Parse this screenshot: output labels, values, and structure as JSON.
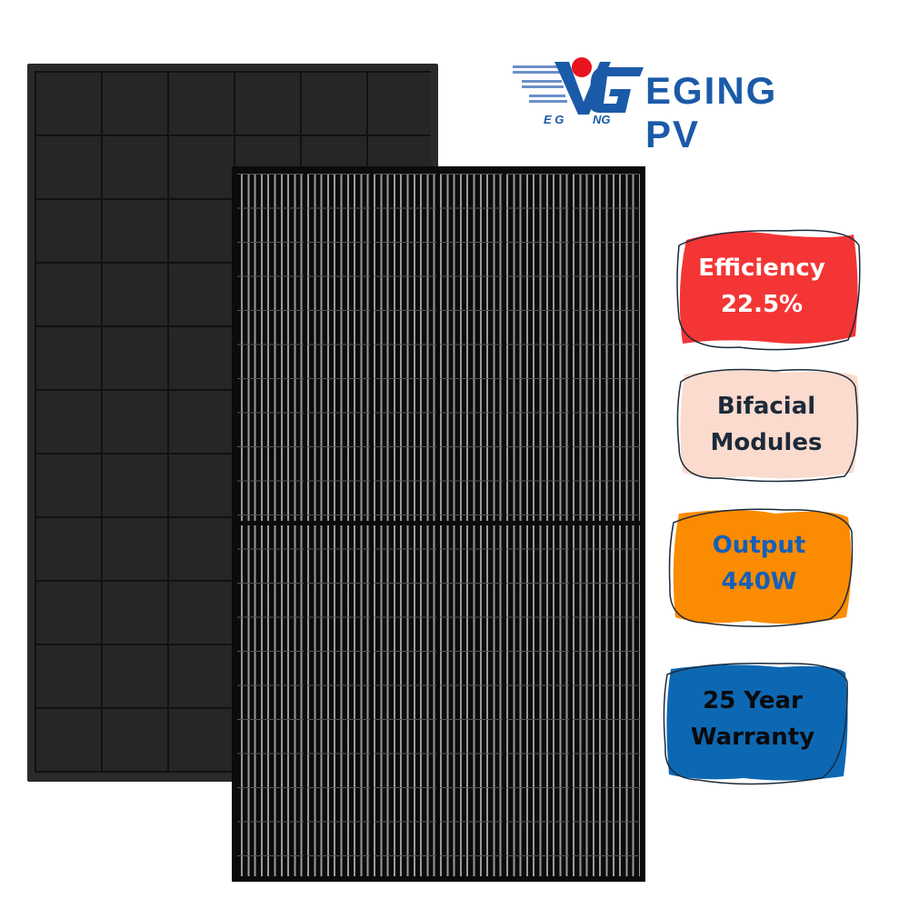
{
  "logo": {
    "brand": "EGING PV",
    "mark_letters": "EGING",
    "colors": {
      "blue": "#1a5aa8",
      "red": "#e8141e"
    }
  },
  "product": {
    "image": "solar-panels-front-and-back"
  },
  "badges": [
    {
      "line1": "Efficiency",
      "line2": "22.5%",
      "fill": "#f43535",
      "text_color": "#ffffff"
    },
    {
      "line1": "Bifacial",
      "line2": "Modules",
      "fill": "#fadbcd",
      "text_color": "#1c2a3a"
    },
    {
      "line1": "Output",
      "line2": "440W",
      "fill": "#fb8b00",
      "text_color": "#1560b8"
    },
    {
      "line1": "25 Year",
      "line2": "Warranty",
      "fill": "#0d68b3",
      "text_color": "#0a0a0a"
    }
  ]
}
